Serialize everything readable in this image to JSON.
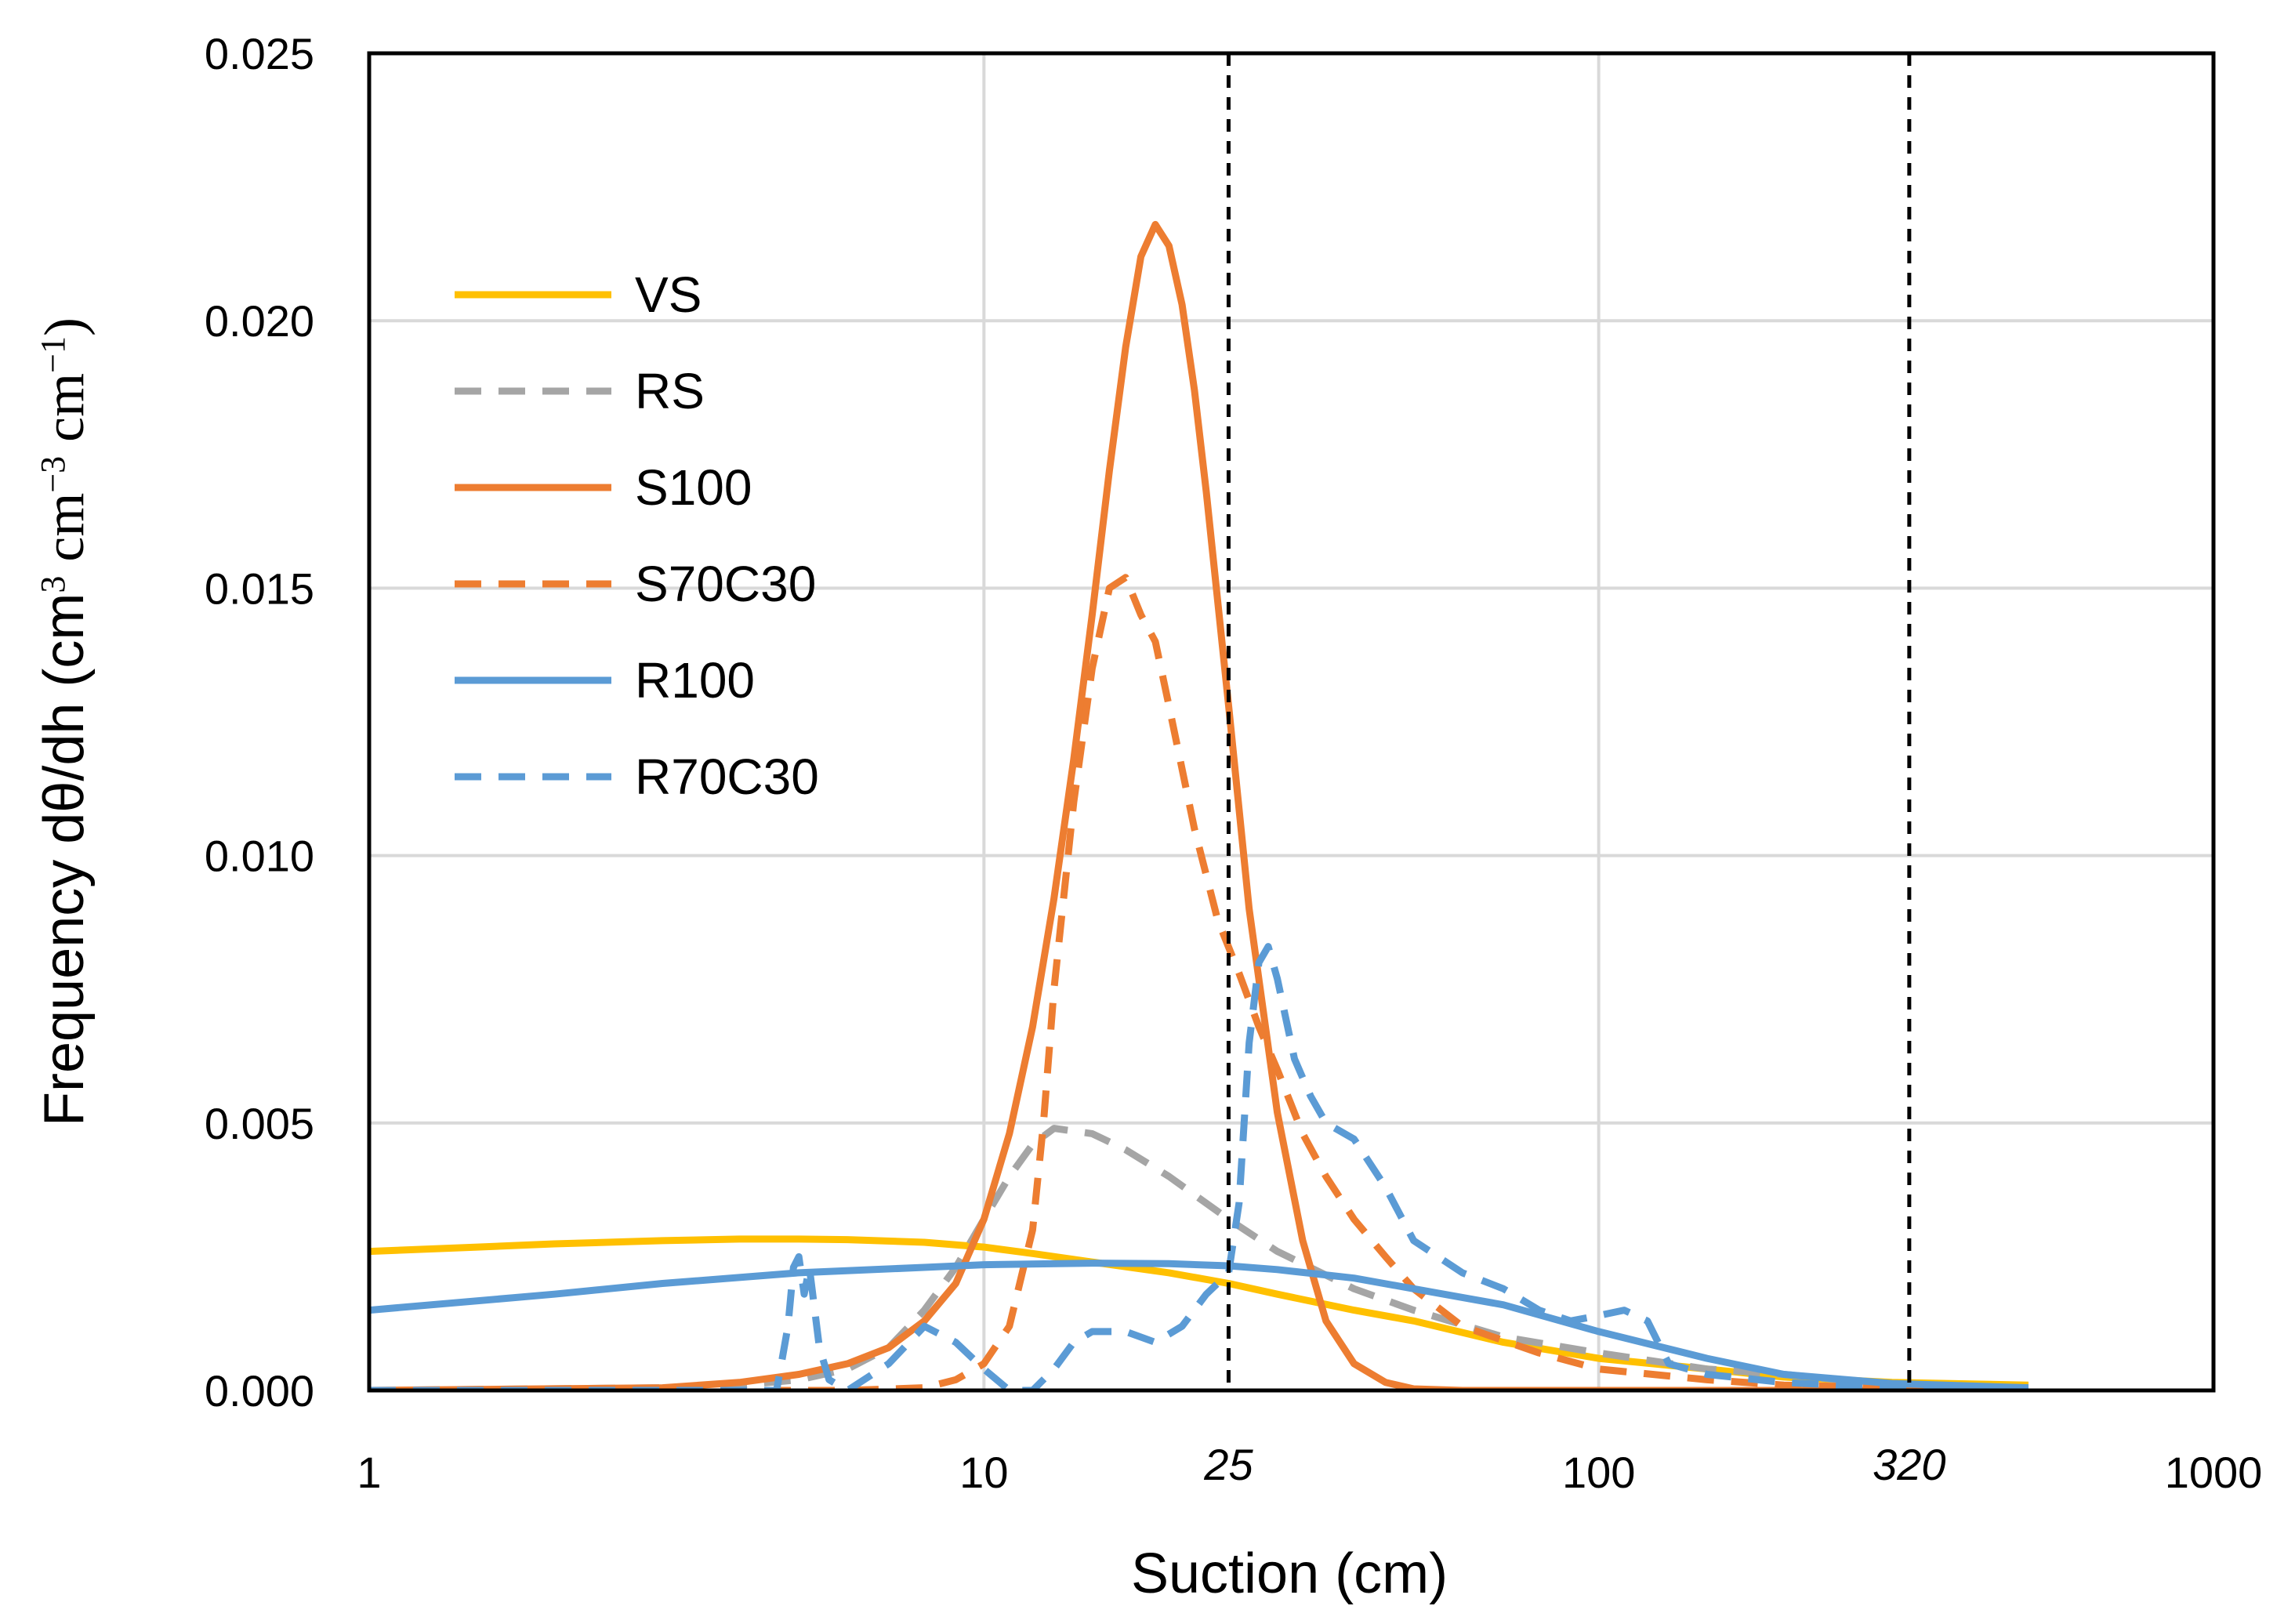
{
  "chart_data": {
    "type": "line",
    "xscale": "log",
    "xlim": [
      1,
      1000
    ],
    "ylim": [
      0,
      0.025
    ],
    "xlabel": "Suction (cm)",
    "ylabel": {
      "prefix": "Frequency dθ/dh (cm",
      "sup1": "3",
      "mid1": " cm",
      "sup2": "−3",
      "mid2": " cm",
      "sup3": "−1",
      "suffix": ")"
    },
    "x_ticks": [
      {
        "value": 1,
        "label": "1"
      },
      {
        "value": 10,
        "label": "10"
      },
      {
        "value": 100,
        "label": "100"
      },
      {
        "value": 1000,
        "label": "1000"
      }
    ],
    "y_ticks": [
      {
        "value": 0,
        "label": "0.000"
      },
      {
        "value": 0.005,
        "label": "0.005"
      },
      {
        "value": 0.01,
        "label": "0.010"
      },
      {
        "value": 0.015,
        "label": "0.015"
      },
      {
        "value": 0.02,
        "label": "0.020"
      },
      {
        "value": 0.025,
        "label": "0.025"
      }
    ],
    "reference_lines": [
      {
        "value": 25,
        "label": "25"
      },
      {
        "value": 320,
        "label": "320"
      }
    ],
    "grid": true,
    "legend_position": "upper-left",
    "series": [
      {
        "name": "VS",
        "color": "#FFC000",
        "dash": "solid",
        "x": [
          1,
          1.5,
          2,
          3,
          4,
          5,
          6,
          8,
          10,
          12,
          15,
          20,
          25,
          30,
          40,
          50,
          70,
          100,
          150,
          200,
          300,
          500
        ],
        "y": [
          0.0026,
          0.00268,
          0.00274,
          0.0028,
          0.00283,
          0.00283,
          0.00282,
          0.00277,
          0.00268,
          0.00256,
          0.0024,
          0.0022,
          0.002,
          0.0018,
          0.0015,
          0.0013,
          0.0009,
          0.0006,
          0.0004,
          0.00025,
          0.00015,
          0.0001
        ]
      },
      {
        "name": "RS",
        "color": "#A5A5A5",
        "dash": "dashed",
        "x": [
          1,
          3,
          4,
          5,
          6,
          7,
          8,
          9,
          10,
          11,
          12,
          13,
          15,
          17,
          20,
          23,
          25,
          30,
          40,
          50,
          70,
          100,
          150,
          200,
          300,
          500
        ],
        "y": [
          0,
          5e-05,
          0.0001,
          0.0002,
          0.0004,
          0.0008,
          0.0015,
          0.0023,
          0.0032,
          0.004,
          0.0046,
          0.0049,
          0.0048,
          0.0045,
          0.004,
          0.0035,
          0.0032,
          0.0026,
          0.0019,
          0.0015,
          0.001,
          0.0007,
          0.0004,
          0.0003,
          0.0001,
          5e-05
        ]
      },
      {
        "name": "S100",
        "color": "#ED7D31",
        "dash": "solid",
        "x": [
          1,
          3,
          4,
          5,
          6,
          7,
          8,
          9,
          10,
          11,
          12,
          13,
          14,
          15,
          16,
          17,
          18,
          19,
          20,
          21,
          22,
          23,
          25,
          27,
          30,
          33,
          36,
          40,
          45,
          50,
          60,
          80,
          100,
          200,
          500
        ],
        "y": [
          0,
          5e-05,
          0.00015,
          0.0003,
          0.0005,
          0.0008,
          0.0013,
          0.002,
          0.0032,
          0.0048,
          0.0068,
          0.0092,
          0.0118,
          0.0145,
          0.0172,
          0.0195,
          0.0212,
          0.0218,
          0.0214,
          0.0203,
          0.0187,
          0.0168,
          0.0128,
          0.009,
          0.0052,
          0.0028,
          0.0013,
          0.0005,
          0.00015,
          3e-05,
          0,
          0,
          0,
          0,
          0
        ]
      },
      {
        "name": "S70C30",
        "color": "#ED7D31",
        "dash": "dashed",
        "x": [
          1,
          6,
          8,
          9,
          10,
          11,
          12,
          12.5,
          13,
          14,
          15,
          16,
          17,
          18,
          19,
          20,
          22,
          24,
          26,
          28,
          30,
          33,
          36,
          40,
          45,
          50,
          60,
          80,
          100,
          150,
          200,
          300,
          500
        ],
        "y": [
          0,
          0,
          5e-05,
          0.0002,
          0.0005,
          0.0012,
          0.003,
          0.005,
          0.0075,
          0.011,
          0.0135,
          0.015,
          0.0152,
          0.0145,
          0.014,
          0.0128,
          0.0105,
          0.0088,
          0.0078,
          0.0068,
          0.006,
          0.0048,
          0.004,
          0.0032,
          0.0025,
          0.0019,
          0.0012,
          0.0007,
          0.0004,
          0.0002,
          0.0001,
          5e-05,
          0
        ]
      },
      {
        "name": "R100",
        "color": "#5B9BD5",
        "dash": "solid",
        "x": [
          1,
          2,
          3,
          5,
          8,
          10,
          15,
          20,
          25,
          30,
          40,
          50,
          70,
          100,
          150,
          200,
          300,
          500
        ],
        "y": [
          0.0015,
          0.0018,
          0.002,
          0.0022,
          0.0023,
          0.00235,
          0.00238,
          0.00237,
          0.00233,
          0.00226,
          0.0021,
          0.0019,
          0.0016,
          0.0011,
          0.0006,
          0.0003,
          0.00013,
          5e-05
        ]
      },
      {
        "name": "R70C30",
        "color": "#5B9BD5",
        "dash": "dashed",
        "x": [
          1,
          4,
          4.6,
          4.8,
          4.9,
          5.0,
          5.1,
          5.2,
          5.4,
          5.6,
          6,
          7,
          8,
          9,
          10,
          11,
          12,
          13,
          14,
          15,
          17,
          19,
          21,
          23,
          25,
          26,
          27,
          28,
          29,
          30,
          32,
          34,
          36,
          40,
          45,
          50,
          60,
          70,
          80,
          90,
          100,
          110,
          120,
          130,
          150,
          200,
          300,
          500
        ],
        "y": [
          0,
          0,
          0,
          0.0012,
          0.0023,
          0.0025,
          0.0018,
          0.0023,
          0.0008,
          0.0002,
          0,
          0.0005,
          0.0012,
          0.0009,
          0.0004,
          0,
          0,
          0.0004,
          0.0009,
          0.0011,
          0.0011,
          0.0009,
          0.0012,
          0.0018,
          0.0022,
          0.0035,
          0.0065,
          0.008,
          0.0083,
          0.0077,
          0.0062,
          0.0055,
          0.005,
          0.0047,
          0.0038,
          0.0028,
          0.0022,
          0.0019,
          0.0015,
          0.0013,
          0.0014,
          0.0015,
          0.0013,
          0.0005,
          0.0003,
          0.00015,
          5e-05,
          0
        ]
      }
    ]
  }
}
